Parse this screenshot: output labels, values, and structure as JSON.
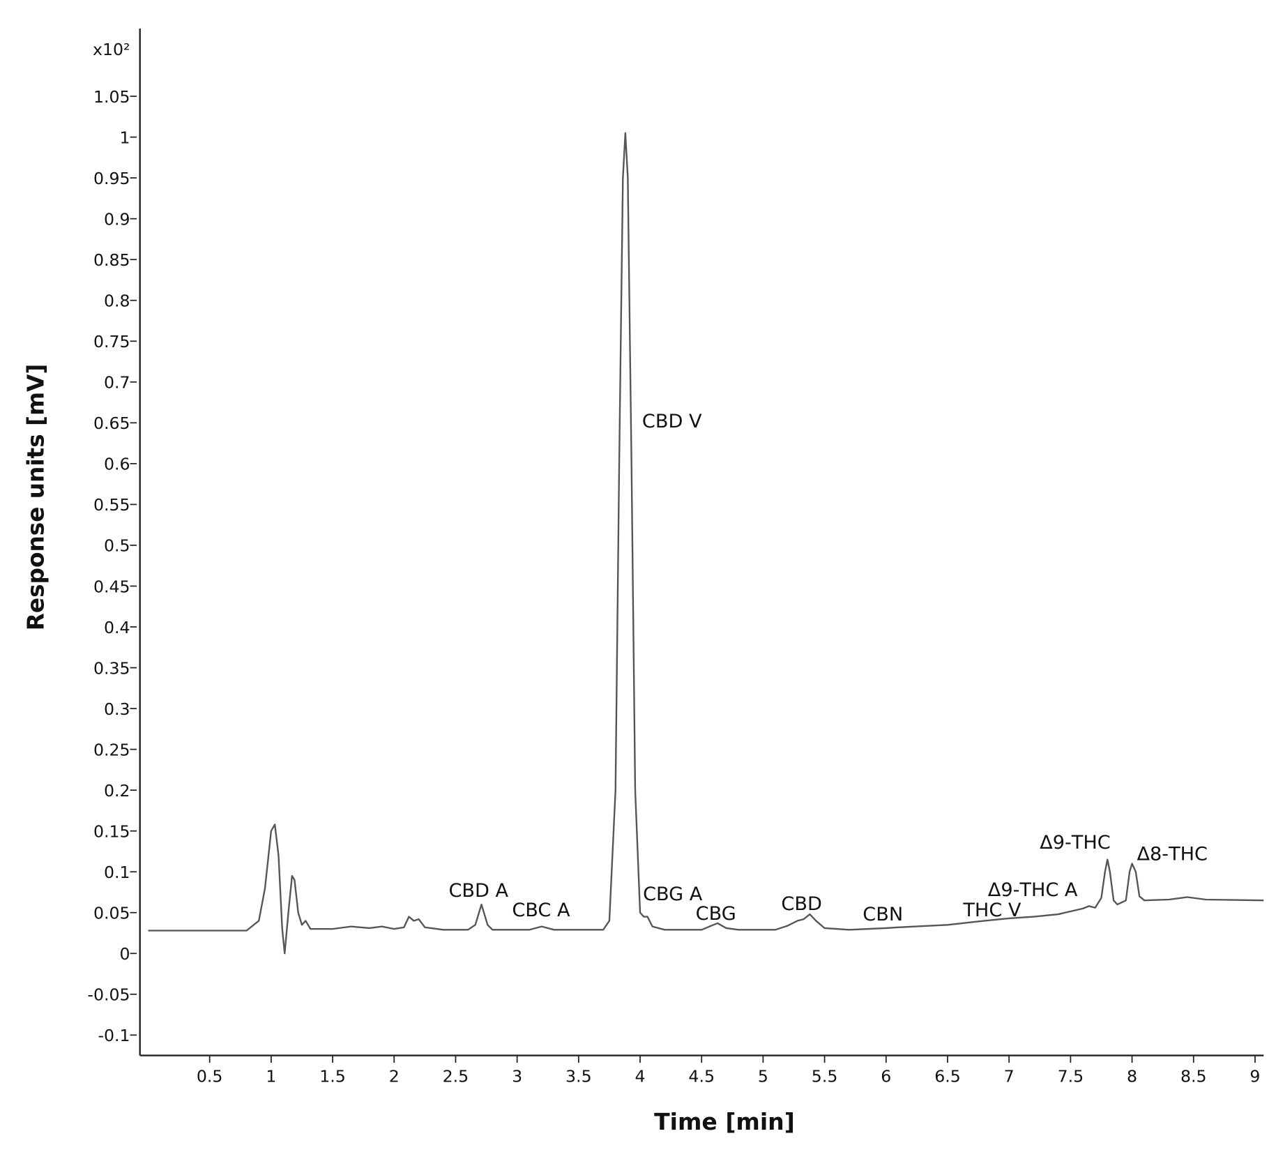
{
  "chart_data": {
    "type": "line",
    "x_label": "Time [min]",
    "y_label": "Response units [mV]",
    "y_unit_label": "x10²",
    "xlim": [
      -0.04,
      9.07
    ],
    "ylim": [
      -0.125,
      1.133
    ],
    "xticks": [
      0.5,
      1,
      1.5,
      2,
      2.5,
      3,
      3.5,
      4,
      4.5,
      5,
      5.5,
      6,
      6.5,
      7,
      7.5,
      8,
      8.5,
      9
    ],
    "yticks": [
      -0.1,
      -0.05,
      0,
      0.05,
      0.1,
      0.15,
      0.2,
      0.25,
      0.3,
      0.35,
      0.4,
      0.45,
      0.5,
      0.55,
      0.6,
      0.65,
      0.7,
      0.75,
      0.8,
      0.85,
      0.9,
      0.95,
      1,
      1.05
    ],
    "x": [
      0.0,
      0.8,
      0.9,
      0.95,
      1.0,
      1.03,
      1.06,
      1.09,
      1.11,
      1.14,
      1.17,
      1.19,
      1.22,
      1.25,
      1.28,
      1.32,
      1.5,
      1.65,
      1.8,
      1.9,
      2.0,
      2.08,
      2.12,
      2.16,
      2.2,
      2.25,
      2.4,
      2.6,
      2.66,
      2.71,
      2.76,
      2.8,
      3.1,
      3.2,
      3.3,
      3.7,
      3.75,
      3.8,
      3.83,
      3.86,
      3.88,
      3.9,
      3.93,
      3.96,
      4.0,
      4.03,
      4.06,
      4.1,
      4.2,
      4.5,
      4.58,
      4.63,
      4.7,
      4.8,
      5.1,
      5.2,
      5.28,
      5.33,
      5.38,
      5.43,
      5.5,
      5.7,
      6.0,
      6.1,
      6.5,
      6.8,
      7.0,
      7.2,
      7.4,
      7.6,
      7.65,
      7.7,
      7.75,
      7.78,
      7.8,
      7.82,
      7.85,
      7.88,
      7.95,
      7.98,
      8.0,
      8.03,
      8.06,
      8.1,
      8.3,
      8.35,
      8.45,
      8.6,
      9.07
    ],
    "series": [
      {
        "color": "#555555",
        "values": [
          0.028,
          0.028,
          0.04,
          0.08,
          0.15,
          0.158,
          0.12,
          0.03,
          0.0,
          0.05,
          0.095,
          0.09,
          0.05,
          0.035,
          0.04,
          0.03,
          0.03,
          0.033,
          0.031,
          0.033,
          0.03,
          0.032,
          0.045,
          0.04,
          0.042,
          0.032,
          0.029,
          0.029,
          0.035,
          0.06,
          0.035,
          0.029,
          0.029,
          0.033,
          0.029,
          0.029,
          0.04,
          0.2,
          0.6,
          0.95,
          1.005,
          0.95,
          0.6,
          0.2,
          0.05,
          0.045,
          0.045,
          0.033,
          0.029,
          0.029,
          0.034,
          0.037,
          0.031,
          0.029,
          0.029,
          0.034,
          0.04,
          0.042,
          0.048,
          0.04,
          0.031,
          0.029,
          0.031,
          0.032,
          0.035,
          0.04,
          0.043,
          0.045,
          0.048,
          0.055,
          0.058,
          0.056,
          0.068,
          0.1,
          0.115,
          0.1,
          0.065,
          0.06,
          0.065,
          0.1,
          0.11,
          0.1,
          0.07,
          0.065,
          0.066,
          0.067,
          0.069,
          0.066,
          0.065
        ]
      }
    ],
    "annotations": [
      "CBD V",
      "CBD A",
      "CBC A",
      "CBG A",
      "CBG",
      "CBD",
      "CBN",
      "THC V",
      "Δ9-THC A",
      "Δ9-THC",
      "Δ8-THC"
    ]
  }
}
